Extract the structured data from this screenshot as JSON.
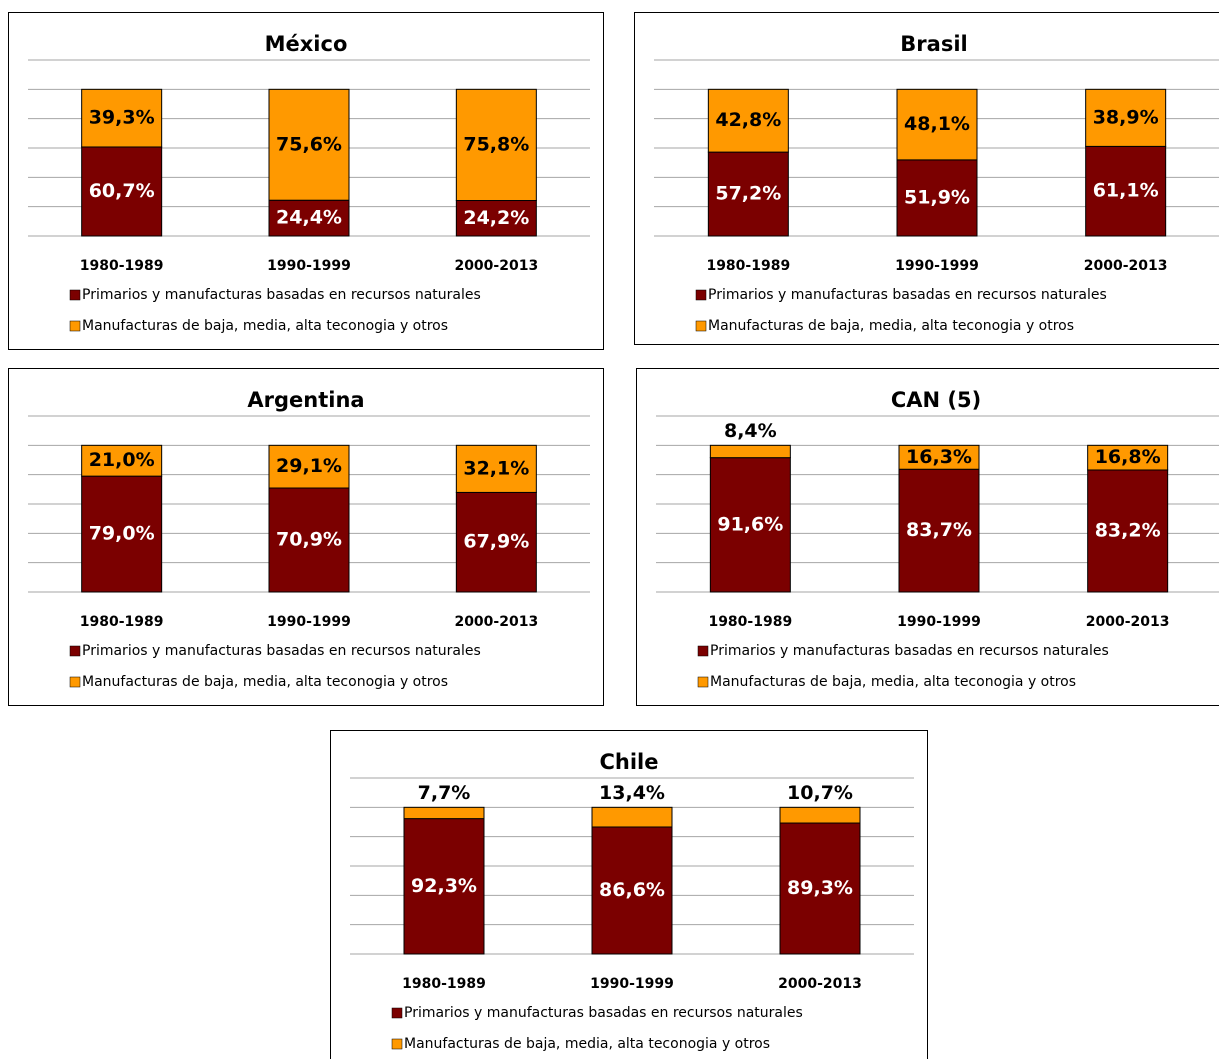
{
  "chart_data": [
    {
      "type": "bar",
      "stacked": true,
      "title": "México",
      "categories": [
        "1980-1989",
        "1990-1999",
        "2000-2013"
      ],
      "ylim": [
        0,
        120
      ],
      "yticks": [
        0,
        20,
        40,
        60,
        80,
        100,
        120
      ],
      "grid": true,
      "series": [
        {
          "name": "Primarios y manufacturas basadas en recursos naturales",
          "color": "#7b0000",
          "values": [
            60.7,
            24.4,
            24.2
          ],
          "value_labels": [
            "60,7%",
            "24,4%",
            "24,2%"
          ]
        },
        {
          "name": "Manufacturas de baja, media, alta teconogia y otros",
          "color": "#ff9900",
          "values": [
            39.3,
            75.6,
            75.8
          ],
          "value_labels": [
            "39,3%",
            "75,6%",
            "75,8%"
          ]
        }
      ]
    },
    {
      "type": "bar",
      "stacked": true,
      "title": "Brasil",
      "categories": [
        "1980-1989",
        "1990-1999",
        "2000-2013"
      ],
      "ylim": [
        0,
        120
      ],
      "yticks": [
        0,
        20,
        40,
        60,
        80,
        100,
        120
      ],
      "grid": true,
      "series": [
        {
          "name": "Primarios y manufacturas basadas en recursos naturales",
          "color": "#7b0000",
          "values": [
            57.2,
            51.9,
            61.1
          ],
          "value_labels": [
            "57,2%",
            "51,9%",
            "61,1%"
          ]
        },
        {
          "name": "Manufacturas de baja, media, alta teconogia y otros",
          "color": "#ff9900",
          "values": [
            42.8,
            48.1,
            38.9
          ],
          "value_labels": [
            "42,8%",
            "48,1%",
            "38,9%"
          ]
        }
      ]
    },
    {
      "type": "bar",
      "stacked": true,
      "title": "Argentina",
      "categories": [
        "1980-1989",
        "1990-1999",
        "2000-2013"
      ],
      "ylim": [
        0,
        120
      ],
      "yticks": [
        0,
        20,
        40,
        60,
        80,
        100,
        120
      ],
      "grid": true,
      "series": [
        {
          "name": "Primarios y manufacturas basadas en recursos naturales",
          "color": "#7b0000",
          "values": [
            79.0,
            70.9,
            67.9
          ],
          "value_labels": [
            "79,0%",
            "70,9%",
            "67,9%"
          ]
        },
        {
          "name": "Manufacturas de baja, media, alta teconogia y otros",
          "color": "#ff9900",
          "values": [
            21.0,
            29.1,
            32.1
          ],
          "value_labels": [
            "21,0%",
            "29,1%",
            "32,1%"
          ]
        }
      ]
    },
    {
      "type": "bar",
      "stacked": true,
      "title": "CAN (5)",
      "categories": [
        "1980-1989",
        "1990-1999",
        "2000-2013"
      ],
      "ylim": [
        0,
        120
      ],
      "yticks": [
        0,
        20,
        40,
        60,
        80,
        100,
        120
      ],
      "grid": true,
      "series": [
        {
          "name": "Primarios y manufacturas basadas en recursos naturales",
          "color": "#7b0000",
          "values": [
            91.6,
            83.7,
            83.2
          ],
          "value_labels": [
            "91,6%",
            "83,7%",
            "83,2%"
          ]
        },
        {
          "name": "Manufacturas de baja, media, alta teconogia y otros",
          "color": "#ff9900",
          "values": [
            8.4,
            16.3,
            16.8
          ],
          "value_labels": [
            "8,4%",
            "16,3%",
            "16,8%"
          ]
        }
      ]
    },
    {
      "type": "bar",
      "stacked": true,
      "title": "Chile",
      "categories": [
        "1980-1989",
        "1990-1999",
        "2000-2013"
      ],
      "ylim": [
        0,
        120
      ],
      "yticks": [
        0,
        20,
        40,
        60,
        80,
        100,
        120
      ],
      "grid": true,
      "series": [
        {
          "name": "Primarios y manufacturas basadas en recursos naturales",
          "color": "#7b0000",
          "values": [
            92.3,
            86.6,
            89.3
          ],
          "value_labels": [
            "92,3%",
            "86,6%",
            "89,3%"
          ]
        },
        {
          "name": "Manufacturas de baja, media, alta teconogia y otros",
          "color": "#ff9900",
          "values": [
            7.7,
            13.4,
            10.7
          ],
          "value_labels": [
            "7,7%",
            "13,4%",
            "10,7%"
          ]
        }
      ]
    }
  ]
}
